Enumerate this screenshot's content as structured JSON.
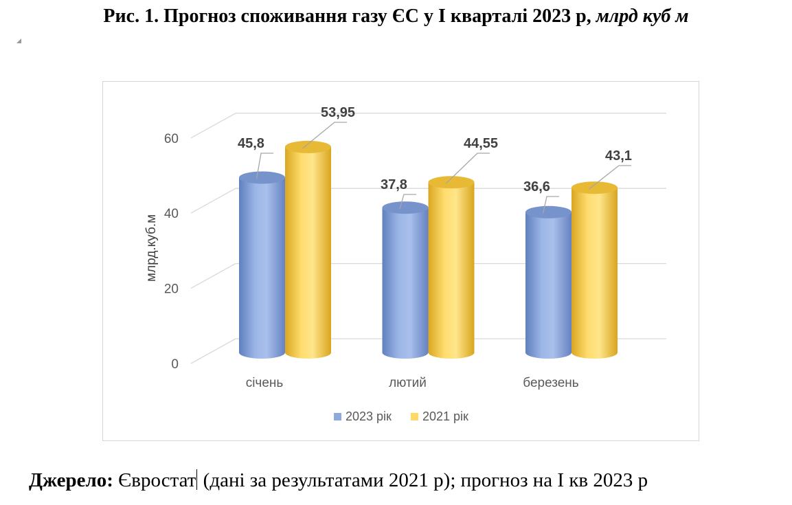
{
  "figure": {
    "title_main": "Рис. 1. Прогноз споживання газу ЄС у I кварталі 2023 р,",
    "title_unit": "млрд куб м"
  },
  "source": {
    "label": "Джерело:",
    "text_part1": "Євростат",
    "text_part2": " (дані за результатами 2021 р); прогноз на I кв 2023 р"
  },
  "chart_data": {
    "type": "bar",
    "style": "3d-cylinder",
    "categories": [
      "січень",
      "лютий",
      "березень"
    ],
    "series": [
      {
        "name": "2023 рік",
        "values": [
          45.8,
          37.8,
          36.6
        ],
        "labels": [
          "45,8",
          "37,8",
          "36,6"
        ],
        "color": "#8eaadb"
      },
      {
        "name": "2021 рік",
        "values": [
          53.95,
          44.55,
          43.1
        ],
        "labels": [
          "53,95",
          "44,55",
          "43,1"
        ],
        "color": "#ffd966"
      }
    ],
    "ylabel": "млрд.куб.м",
    "ylim": [
      0,
      60
    ],
    "yticks": [
      "0",
      "20",
      "40",
      "60"
    ],
    "grid": true,
    "legend": "bottom"
  }
}
